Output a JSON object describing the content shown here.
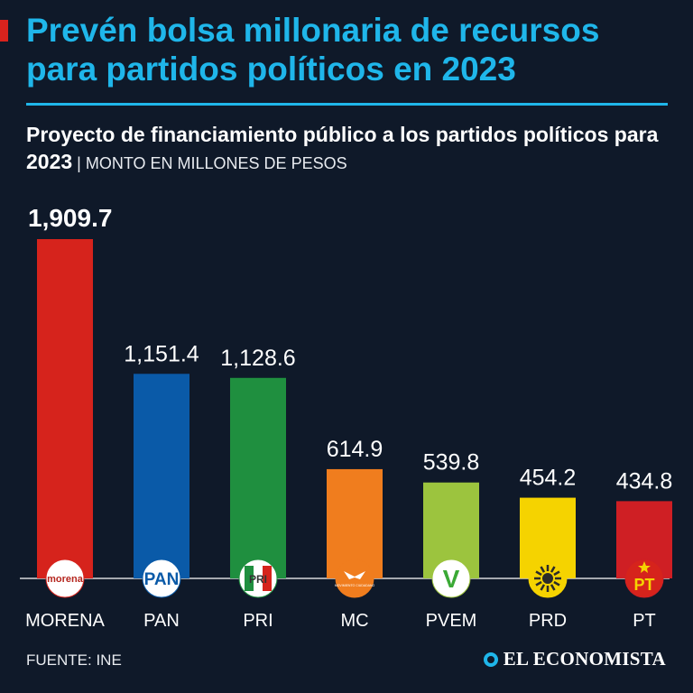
{
  "header": {
    "title": "Prevén bolsa millonaria de recursos para partidos políticos en 2023",
    "subtitle_bold": "Proyecto de financiamiento público a los partidos políticos para 2023",
    "subtitle_sep": " | ",
    "subtitle_unit": "MONTO EN MILLONES DE PESOS"
  },
  "footer": {
    "source": "FUENTE: INE",
    "brand": "EL ECONOMISTA"
  },
  "chart_data": {
    "type": "bar",
    "title": "Proyecto de financiamiento público a los partidos políticos para 2023",
    "ylabel": "Monto en millones de pesos",
    "xlabel": "",
    "ylim": [
      0,
      2000
    ],
    "categories": [
      "MORENA",
      "PAN",
      "PRI",
      "MC",
      "PVEM",
      "PRD",
      "PT"
    ],
    "value_labels": [
      "1,909.7",
      "1,151.4",
      "1,128.6",
      "614.9",
      "539.8",
      "454.2",
      "434.8"
    ],
    "values": [
      1909.7,
      1151.4,
      1128.6,
      614.9,
      539.8,
      454.2,
      434.8
    ],
    "colors": [
      "#d6231c",
      "#0a5aa8",
      "#1f8f3f",
      "#f07d1e",
      "#9cc43e",
      "#f5d300",
      "#cf1f24"
    ],
    "logos": [
      "morena",
      "PAN",
      "PRI",
      "MOVIMIENTO CIUDADANO",
      "V",
      "",
      "PT"
    ]
  }
}
